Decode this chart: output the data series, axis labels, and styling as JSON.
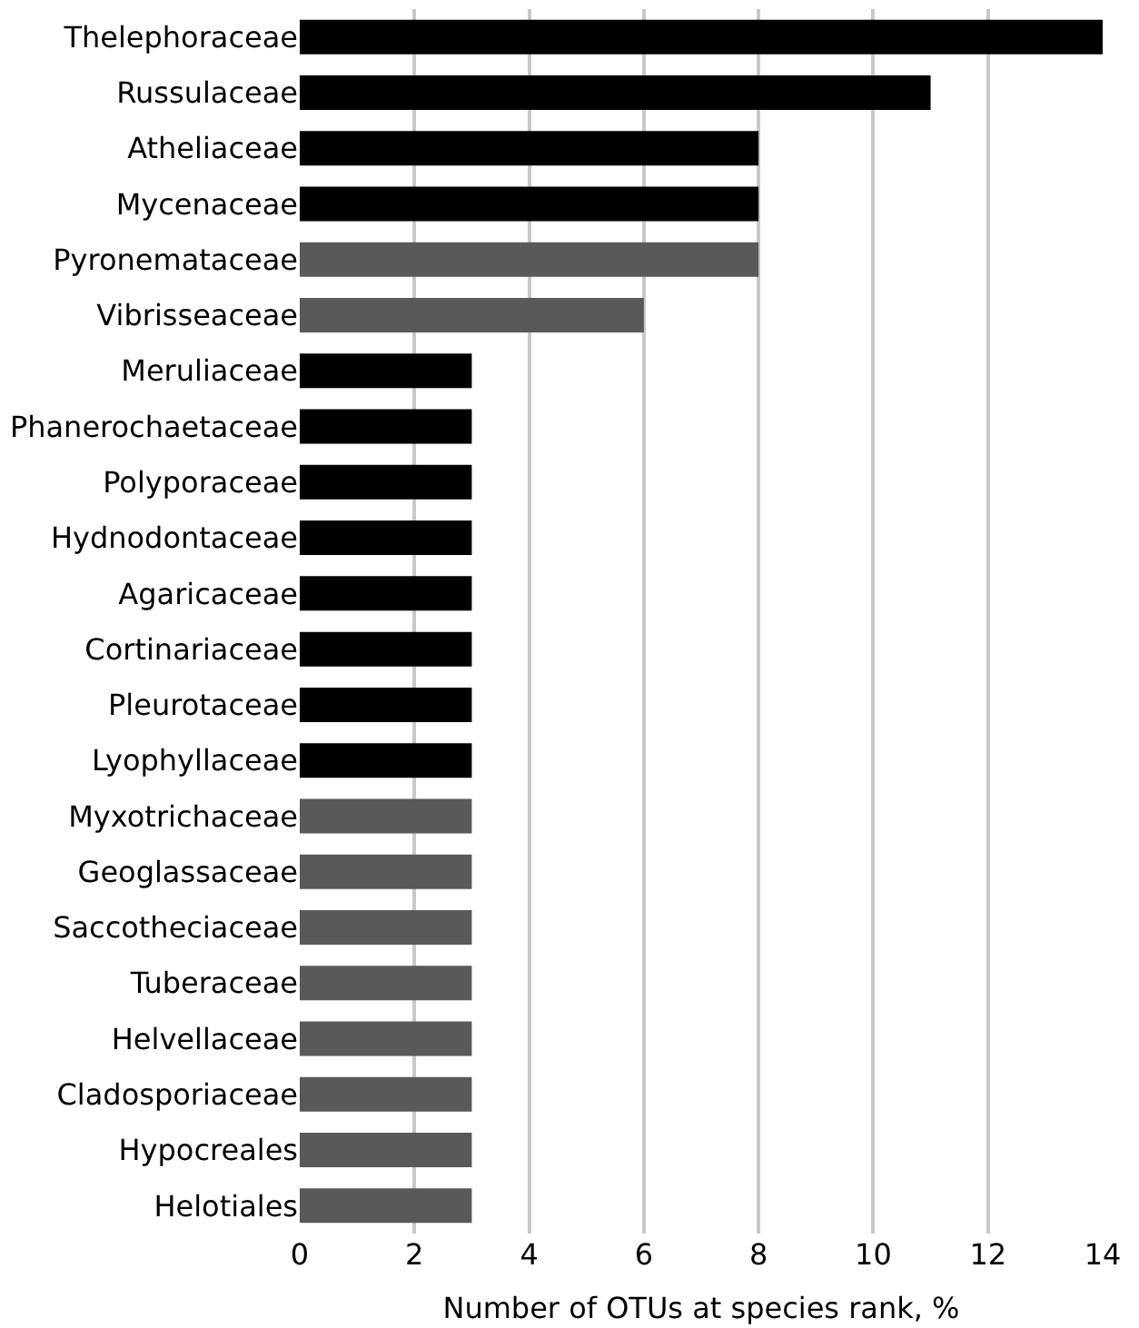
{
  "chart_data": {
    "type": "bar",
    "orientation": "horizontal",
    "xlabel": "Number of OTUs at species rank, %",
    "categories": [
      "Thelephoraceae",
      "Russulaceae",
      "Atheliaceae",
      "Mycenaceae",
      "Pyronemataceae",
      "Vibrisseaceae",
      "Meruliaceae",
      "Phanerochaetaceae",
      "Polyporaceae",
      "Hydnodontaceae",
      "Agaricaceae",
      "Cortinariaceae",
      "Pleurotaceae",
      "Lyophyllaceae",
      "Myxotrichaceae",
      "Geoglassaceae",
      "Saccotheciaceae",
      "Tuberaceae",
      "Helvellaceae",
      "Cladosporiaceae",
      "Hypocreales",
      "Helotiales"
    ],
    "values": [
      14,
      11,
      8,
      8,
      8,
      6,
      3,
      3,
      3,
      3,
      3,
      3,
      3,
      3,
      3,
      3,
      3,
      3,
      3,
      3,
      3,
      3
    ],
    "colors": [
      "#000000",
      "#000000",
      "#000000",
      "#000000",
      "#595959",
      "#595959",
      "#000000",
      "#000000",
      "#000000",
      "#000000",
      "#000000",
      "#000000",
      "#000000",
      "#000000",
      "#595959",
      "#595959",
      "#595959",
      "#595959",
      "#595959",
      "#595959",
      "#595959",
      "#595959"
    ],
    "xlim": [
      0,
      14
    ],
    "xticks": [
      0,
      2,
      4,
      6,
      8,
      10,
      12,
      14
    ],
    "grid": "x"
  }
}
